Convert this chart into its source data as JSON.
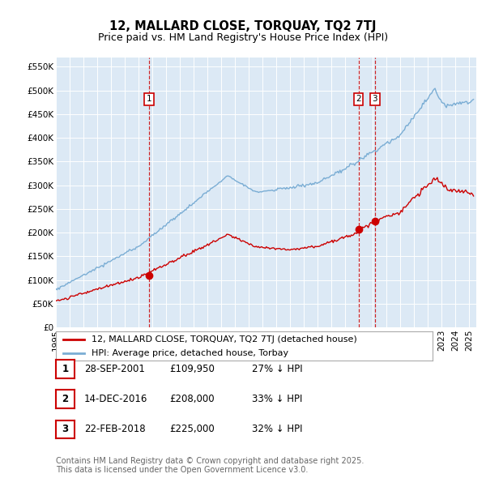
{
  "title": "12, MALLARD CLOSE, TORQUAY, TQ2 7TJ",
  "subtitle": "Price paid vs. HM Land Registry's House Price Index (HPI)",
  "ylabel_labels": [
    "£0",
    "£50K",
    "£100K",
    "£150K",
    "£200K",
    "£250K",
    "£300K",
    "£350K",
    "£400K",
    "£450K",
    "£500K",
    "£550K"
  ],
  "ylabel_values": [
    0,
    50000,
    100000,
    150000,
    200000,
    250000,
    300000,
    350000,
    400000,
    450000,
    500000,
    550000
  ],
  "ylim": [
    0,
    570000
  ],
  "xlim_start": 1995.0,
  "xlim_end": 2025.5,
  "sale_dates": [
    2001.74,
    2016.95,
    2018.14
  ],
  "sale_prices": [
    109950,
    208000,
    225000
  ],
  "sale_labels": [
    "1",
    "2",
    "3"
  ],
  "sale_color": "#cc0000",
  "hpi_color": "#7aadd4",
  "vline_color": "#cc0000",
  "plot_bg_color": "#dce9f5",
  "legend_label_red": "12, MALLARD CLOSE, TORQUAY, TQ2 7TJ (detached house)",
  "legend_label_blue": "HPI: Average price, detached house, Torbay",
  "table_entries": [
    {
      "num": "1",
      "date": "28-SEP-2001",
      "price": "£109,950",
      "pct": "27% ↓ HPI"
    },
    {
      "num": "2",
      "date": "14-DEC-2016",
      "price": "£208,000",
      "pct": "33% ↓ HPI"
    },
    {
      "num": "3",
      "date": "22-FEB-2018",
      "price": "£225,000",
      "pct": "32% ↓ HPI"
    }
  ],
  "footer": "Contains HM Land Registry data © Crown copyright and database right 2025.\nThis data is licensed under the Open Government Licence v3.0.",
  "title_fontsize": 10.5,
  "subtitle_fontsize": 9,
  "tick_fontsize": 7.5,
  "legend_fontsize": 8,
  "table_fontsize": 8.5,
  "footer_fontsize": 7
}
